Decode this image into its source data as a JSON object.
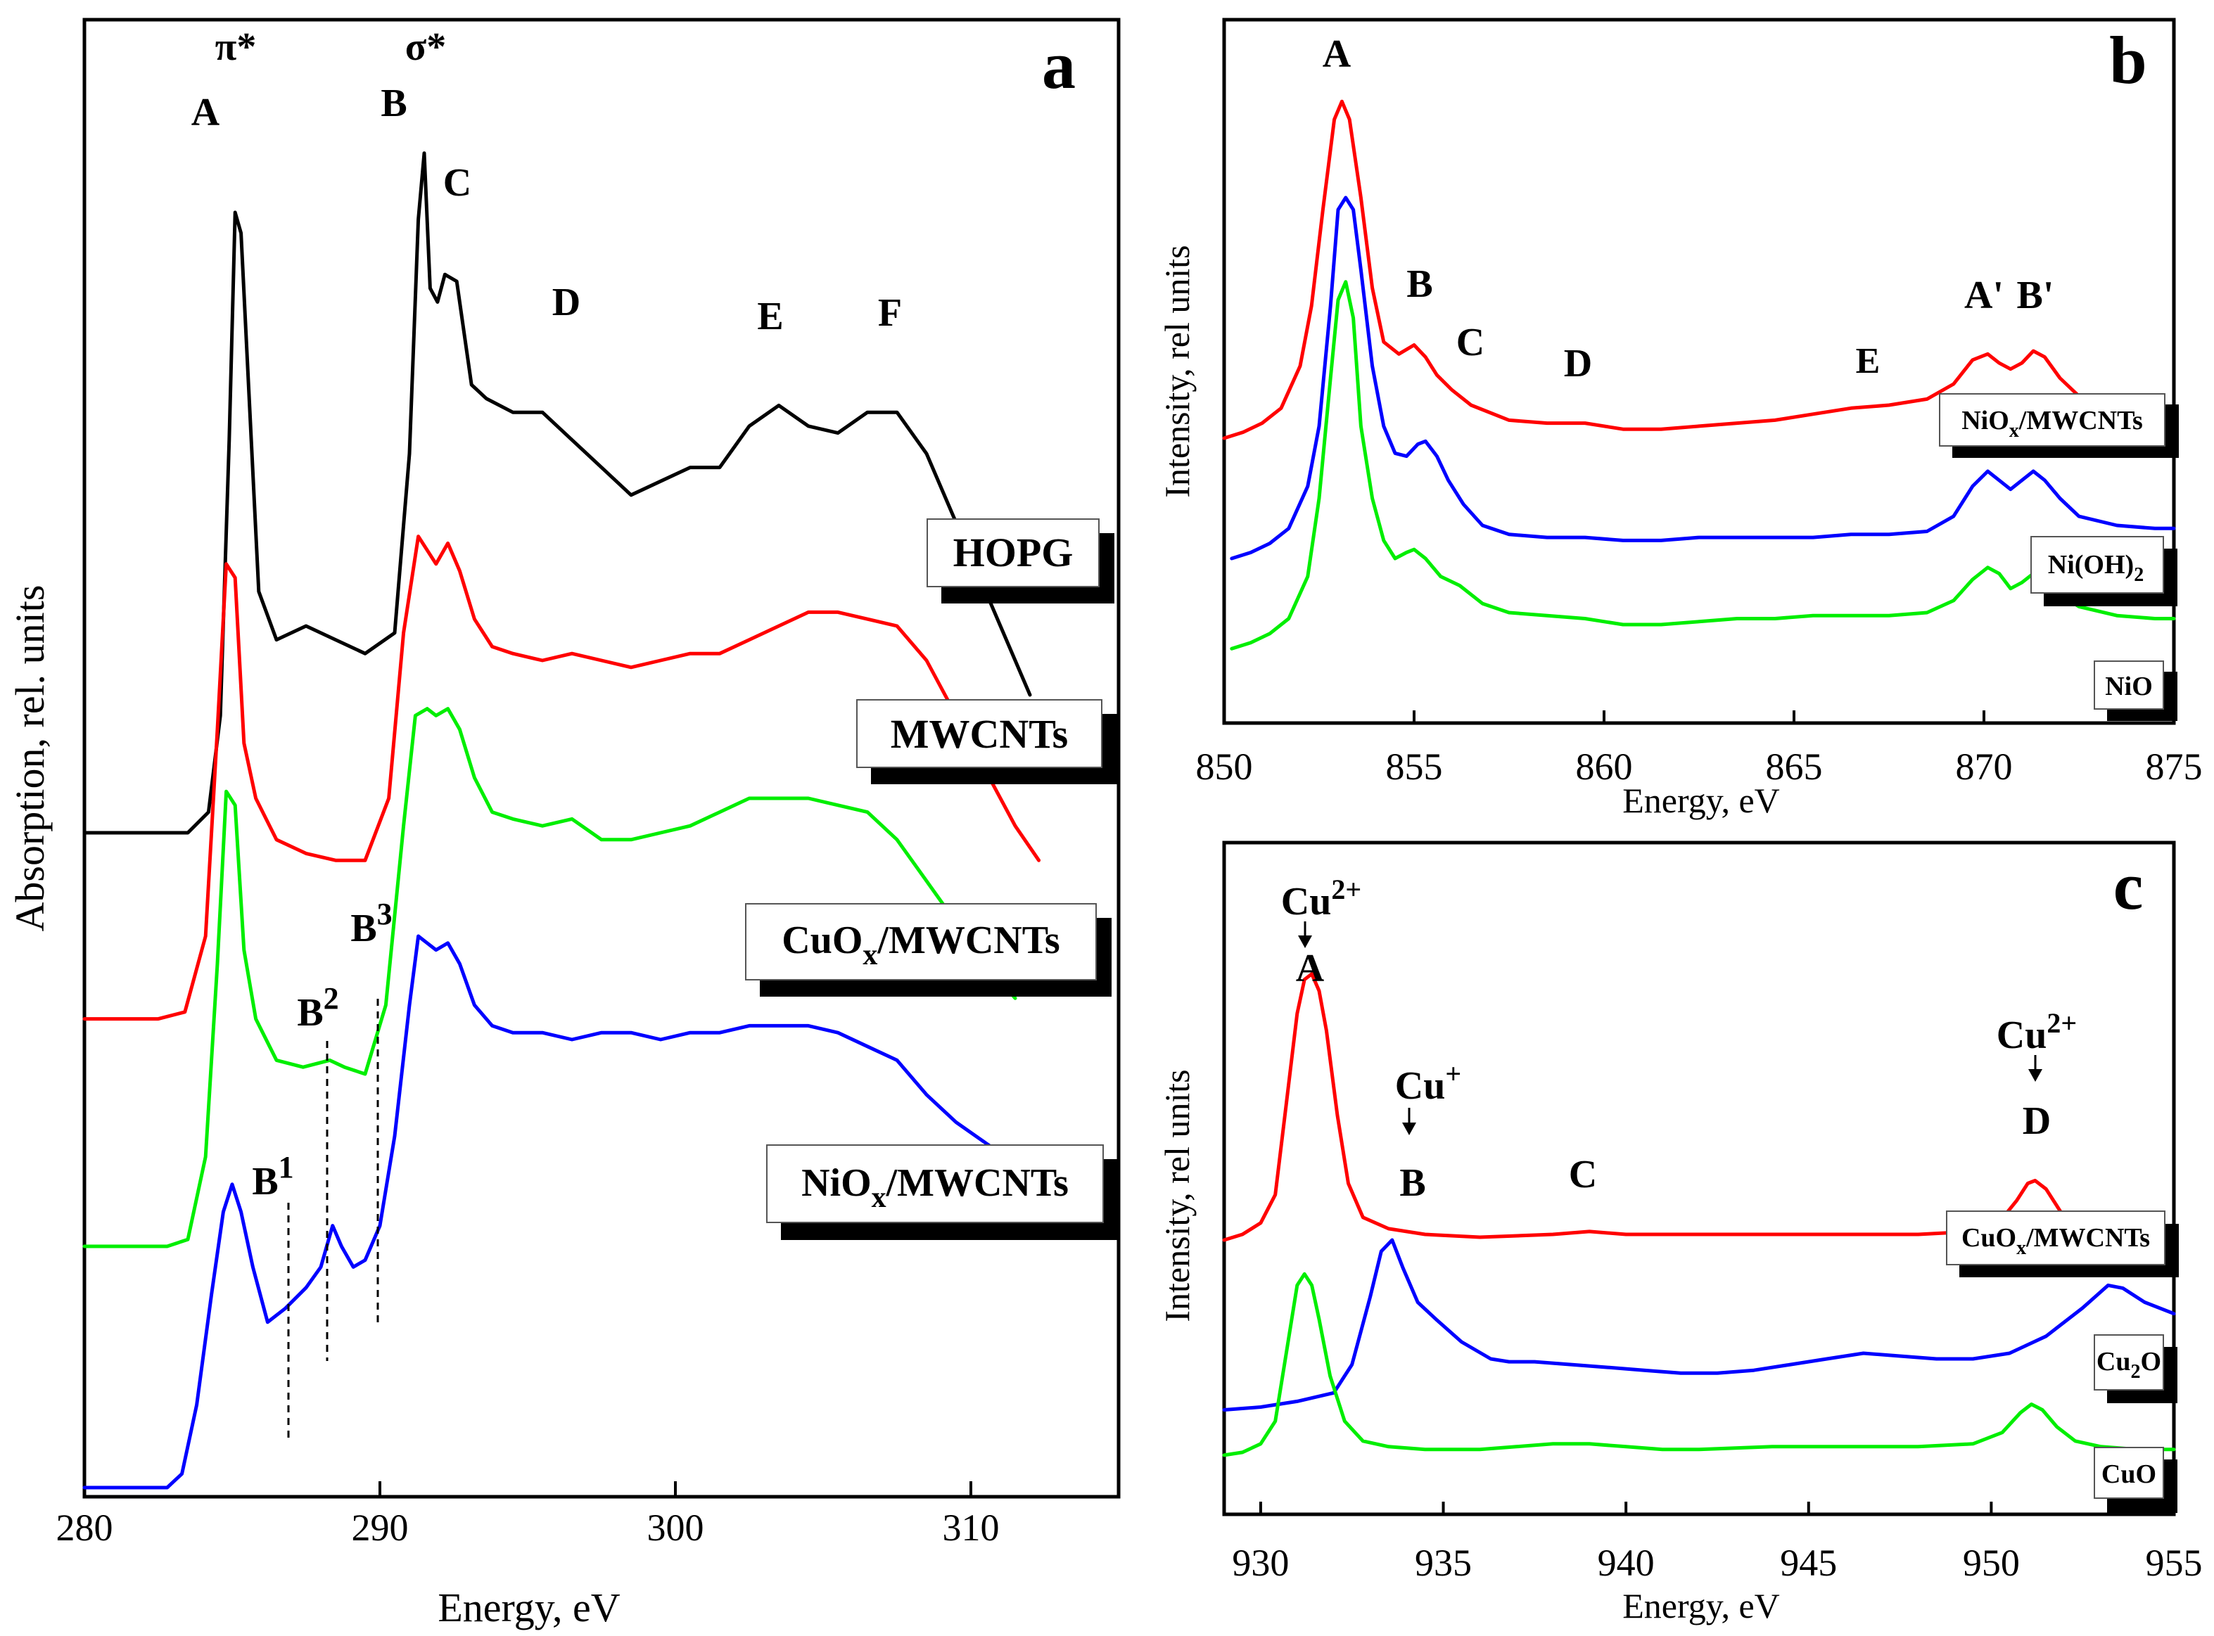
{
  "chart_data": [
    {
      "panel": "a",
      "type": "line",
      "xlabel": "Energy, eV",
      "ylabel": "Absorption, rel. units",
      "xlim": [
        280,
        315
      ],
      "xticks": [
        280,
        290,
        300,
        310
      ],
      "ylim": [
        0,
        1
      ],
      "series": [
        {
          "name": "HOPG",
          "color": "#000000",
          "x": [
            280,
            283.5,
            284.2,
            284.6,
            284.9,
            285.1,
            285.3,
            285.6,
            285.9,
            286.5,
            287.5,
            288.5,
            289.5,
            290.5,
            291.0,
            291.3,
            291.5,
            291.7,
            291.95,
            292.2,
            292.6,
            293.1,
            293.6,
            294.5,
            295.5,
            296.5,
            297.5,
            298.5,
            299.5,
            300.5,
            301.5,
            302.5,
            303.5,
            304.5,
            305.5,
            306.5,
            307.5,
            308.5,
            309.5,
            310.5,
            311.5,
            312.0
          ],
          "y": [
            0.475,
            0.475,
            0.49,
            0.56,
            0.76,
            0.925,
            0.91,
            0.78,
            0.65,
            0.615,
            0.625,
            0.615,
            0.605,
            0.62,
            0.75,
            0.92,
            0.968,
            0.87,
            0.86,
            0.88,
            0.875,
            0.8,
            0.79,
            0.78,
            0.78,
            0.76,
            0.74,
            0.72,
            0.73,
            0.74,
            0.74,
            0.77,
            0.785,
            0.77,
            0.765,
            0.78,
            0.78,
            0.75,
            0.7,
            0.65,
            0.6,
            0.575
          ]
        },
        {
          "name": "MWCNTs",
          "color": "#ff0000",
          "x": [
            280,
            282.5,
            283.4,
            284.1,
            284.5,
            284.8,
            285.1,
            285.4,
            285.8,
            286.5,
            287.5,
            288.5,
            289.5,
            290.3,
            290.8,
            291.3,
            291.6,
            291.9,
            292.3,
            292.7,
            293.2,
            293.8,
            294.5,
            295.5,
            296.5,
            297.5,
            298.5,
            299.5,
            300.5,
            301.5,
            302.5,
            303.5,
            304.5,
            305.5,
            306.5,
            307.5,
            308.5,
            309.5,
            310.5,
            311.5,
            312.3
          ],
          "y": [
            0.34,
            0.34,
            0.345,
            0.4,
            0.55,
            0.67,
            0.66,
            0.54,
            0.5,
            0.47,
            0.46,
            0.455,
            0.455,
            0.5,
            0.62,
            0.69,
            0.68,
            0.67,
            0.685,
            0.665,
            0.63,
            0.61,
            0.605,
            0.6,
            0.605,
            0.6,
            0.595,
            0.6,
            0.605,
            0.605,
            0.615,
            0.625,
            0.635,
            0.635,
            0.63,
            0.625,
            0.6,
            0.56,
            0.52,
            0.48,
            0.455
          ]
        },
        {
          "name": "CuOx/MWCNTs",
          "color": "#00ee00",
          "x": [
            280,
            282.8,
            283.5,
            284.1,
            284.5,
            284.8,
            285.1,
            285.4,
            285.8,
            286.5,
            287.4,
            288.3,
            288.8,
            289.5,
            290.2,
            290.8,
            291.2,
            291.6,
            291.9,
            292.3,
            292.7,
            293.2,
            293.8,
            294.5,
            295.5,
            296.5,
            297.5,
            298.5,
            299.5,
            300.5,
            301.5,
            302.5,
            303.5,
            304.5,
            305.5,
            306.5,
            307.5,
            308.5,
            309.5,
            310.5,
            311.5
          ],
          "y": [
            0.175,
            0.175,
            0.18,
            0.24,
            0.38,
            0.505,
            0.495,
            0.39,
            0.34,
            0.31,
            0.305,
            0.31,
            0.305,
            0.3,
            0.35,
            0.48,
            0.56,
            0.565,
            0.56,
            0.565,
            0.55,
            0.515,
            0.49,
            0.485,
            0.48,
            0.485,
            0.47,
            0.47,
            0.475,
            0.48,
            0.49,
            0.5,
            0.5,
            0.5,
            0.495,
            0.49,
            0.47,
            0.44,
            0.41,
            0.38,
            0.355
          ]
        },
        {
          "name": "NiOx/MWCNTs",
          "color": "#0000ff",
          "x": [
            280,
            282.8,
            283.3,
            283.8,
            284.3,
            284.7,
            285.0,
            285.3,
            285.7,
            286.2,
            286.8,
            287.5,
            288.0,
            288.4,
            288.7,
            289.1,
            289.5,
            290.0,
            290.5,
            291.0,
            291.3,
            291.6,
            291.9,
            292.3,
            292.7,
            293.2,
            293.8,
            294.5,
            295.5,
            296.5,
            297.5,
            298.5,
            299.5,
            300.5,
            301.5,
            302.5,
            303.5,
            304.5,
            305.5,
            306.5,
            307.5,
            308.5,
            309.5,
            310.5,
            311.5,
            312.2
          ],
          "y": [
            0.0,
            0.0,
            0.01,
            0.06,
            0.14,
            0.2,
            0.22,
            0.2,
            0.16,
            0.12,
            0.13,
            0.145,
            0.16,
            0.19,
            0.175,
            0.16,
            0.165,
            0.19,
            0.255,
            0.35,
            0.4,
            0.395,
            0.39,
            0.395,
            0.38,
            0.35,
            0.335,
            0.33,
            0.33,
            0.325,
            0.33,
            0.33,
            0.325,
            0.33,
            0.33,
            0.335,
            0.335,
            0.335,
            0.33,
            0.32,
            0.31,
            0.285,
            0.265,
            0.25,
            0.235,
            0.225
          ]
        }
      ],
      "peak_labels": [
        "A",
        "B",
        "C",
        "D",
        "E",
        "F"
      ],
      "orbital_labels": [
        "π*",
        "σ*"
      ],
      "feature_labels": [
        {
          "base": "B",
          "sup": "1"
        },
        {
          "base": "B",
          "sup": "2"
        },
        {
          "base": "B",
          "sup": "3"
        }
      ],
      "legend": [
        {
          "label": "HOPG"
        },
        {
          "label": "MWCNTs"
        },
        {
          "base": "CuO",
          "sub": "x",
          "rest": "/MWCNTs"
        },
        {
          "base": "NiO",
          "sub": "x",
          "rest": "/MWCNTs"
        }
      ]
    },
    {
      "panel": "b",
      "type": "line",
      "xlabel": "Energy, eV",
      "ylabel": "Intensity, rel units",
      "xlim": [
        850,
        875
      ],
      "xticks": [
        850,
        855,
        860,
        865,
        870,
        875
      ],
      "ylim": [
        0,
        1
      ],
      "series": [
        {
          "name": "NiOx/MWCNTs",
          "color": "#ff0000",
          "x": [
            850,
            850.5,
            851,
            851.5,
            852,
            852.3,
            852.6,
            852.9,
            853.1,
            853.3,
            853.6,
            853.9,
            854.2,
            854.6,
            855.0,
            855.3,
            855.6,
            856.0,
            856.5,
            857.5,
            858.5,
            859.5,
            860.5,
            861.5,
            862.5,
            863.5,
            864.5,
            865.5,
            866.5,
            867.5,
            868.5,
            869.2,
            869.7,
            870.1,
            870.4,
            870.7,
            871.0,
            871.3,
            871.6,
            872.0,
            872.5,
            873.5,
            874.5,
            875.0
          ],
          "y": [
            0.4,
            0.41,
            0.425,
            0.45,
            0.52,
            0.62,
            0.78,
            0.93,
            0.96,
            0.93,
            0.8,
            0.65,
            0.56,
            0.54,
            0.555,
            0.535,
            0.505,
            0.48,
            0.455,
            0.43,
            0.425,
            0.425,
            0.415,
            0.415,
            0.42,
            0.425,
            0.43,
            0.44,
            0.45,
            0.455,
            0.465,
            0.49,
            0.53,
            0.54,
            0.525,
            0.515,
            0.525,
            0.545,
            0.535,
            0.5,
            0.47,
            0.455,
            0.45,
            0.45
          ]
        },
        {
          "name": "Ni(OH)2",
          "color": "#0000ff",
          "x": [
            850.2,
            850.7,
            851.2,
            851.7,
            852.2,
            852.5,
            852.8,
            853.0,
            853.2,
            853.4,
            853.6,
            853.9,
            854.2,
            854.5,
            854.8,
            855.1,
            855.3,
            855.6,
            855.9,
            856.3,
            856.8,
            857.5,
            858.5,
            859.5,
            860.5,
            861.5,
            862.5,
            863.5,
            864.5,
            865.5,
            866.5,
            867.5,
            868.5,
            869.2,
            869.7,
            870.1,
            870.4,
            870.7,
            871.0,
            871.3,
            871.6,
            872.0,
            872.5,
            873.5,
            874.5,
            875.0
          ],
          "y": [
            0.2,
            0.21,
            0.225,
            0.25,
            0.32,
            0.42,
            0.62,
            0.78,
            0.8,
            0.78,
            0.68,
            0.52,
            0.42,
            0.375,
            0.37,
            0.39,
            0.395,
            0.37,
            0.33,
            0.29,
            0.255,
            0.24,
            0.235,
            0.235,
            0.23,
            0.23,
            0.235,
            0.235,
            0.235,
            0.235,
            0.24,
            0.24,
            0.245,
            0.27,
            0.32,
            0.345,
            0.33,
            0.315,
            0.33,
            0.345,
            0.33,
            0.3,
            0.27,
            0.255,
            0.25,
            0.25
          ]
        },
        {
          "name": "NiO",
          "color": "#00ee00",
          "x": [
            850.2,
            850.7,
            851.2,
            851.7,
            852.2,
            852.5,
            852.8,
            853.0,
            853.2,
            853.4,
            853.6,
            853.9,
            854.2,
            854.5,
            854.8,
            855.0,
            855.3,
            855.7,
            856.2,
            856.8,
            857.5,
            858.5,
            859.5,
            860.5,
            861.5,
            862.5,
            863.5,
            864.5,
            865.5,
            866.5,
            867.5,
            868.5,
            869.2,
            869.7,
            870.1,
            870.4,
            870.7,
            871.0,
            871.3,
            871.6,
            872.0,
            872.5,
            873.5,
            874.5,
            875.0
          ],
          "y": [
            0.05,
            0.06,
            0.075,
            0.1,
            0.17,
            0.3,
            0.5,
            0.63,
            0.66,
            0.6,
            0.42,
            0.3,
            0.23,
            0.2,
            0.21,
            0.215,
            0.2,
            0.17,
            0.155,
            0.125,
            0.11,
            0.105,
            0.1,
            0.09,
            0.09,
            0.095,
            0.1,
            0.1,
            0.105,
            0.105,
            0.105,
            0.11,
            0.13,
            0.165,
            0.185,
            0.175,
            0.15,
            0.16,
            0.175,
            0.165,
            0.14,
            0.12,
            0.105,
            0.1,
            0.1
          ]
        }
      ],
      "peak_labels": [
        "A",
        "B",
        "C",
        "D",
        "E",
        "A'",
        "B'"
      ],
      "legend": [
        {
          "base": "NiO",
          "sub": "x",
          "rest": "/MWCNTs"
        },
        {
          "base": "Ni(OH)",
          "sub": "2",
          "rest": ""
        },
        {
          "label": "NiO"
        }
      ]
    },
    {
      "panel": "c",
      "type": "line",
      "xlabel": "Energy, eV",
      "ylabel": "Intensity, rel units",
      "xlim": [
        929,
        955
      ],
      "xticks": [
        930,
        935,
        940,
        945,
        950,
        955
      ],
      "ylim": [
        0,
        1
      ],
      "series": [
        {
          "name": "CuOx/MWCNTs",
          "color": "#ff0000",
          "x": [
            929,
            929.5,
            930.0,
            930.4,
            930.7,
            931.0,
            931.2,
            931.4,
            931.6,
            931.8,
            932.1,
            932.4,
            932.8,
            933.5,
            934.5,
            936,
            938,
            939,
            940,
            942,
            944,
            946,
            948,
            949.5,
            950.2,
            950.7,
            951.0,
            951.2,
            951.5,
            951.9,
            952.4,
            953.2,
            954,
            955
          ],
          "y": [
            0.4,
            0.41,
            0.43,
            0.48,
            0.64,
            0.8,
            0.86,
            0.87,
            0.84,
            0.77,
            0.62,
            0.5,
            0.44,
            0.42,
            0.41,
            0.405,
            0.41,
            0.415,
            0.41,
            0.41,
            0.41,
            0.41,
            0.41,
            0.415,
            0.43,
            0.47,
            0.5,
            0.505,
            0.49,
            0.45,
            0.42,
            0.41,
            0.41,
            0.41
          ]
        },
        {
          "name": "Cu2O",
          "color": "#0000ff",
          "x": [
            929,
            930,
            931,
            932,
            932.5,
            933.0,
            933.3,
            933.6,
            933.9,
            934.3,
            934.8,
            935.5,
            936.3,
            936.8,
            937.5,
            938.5,
            939.5,
            940.5,
            941.5,
            942.5,
            943.5,
            944.5,
            945.5,
            946.5,
            947.5,
            948.5,
            949.5,
            950.5,
            951.5,
            952.5,
            953.2,
            953.6,
            954.2,
            955
          ],
          "y": [
            0.1,
            0.105,
            0.115,
            0.13,
            0.18,
            0.3,
            0.38,
            0.4,
            0.35,
            0.29,
            0.26,
            0.22,
            0.19,
            0.185,
            0.185,
            0.18,
            0.175,
            0.17,
            0.165,
            0.165,
            0.17,
            0.18,
            0.19,
            0.2,
            0.195,
            0.19,
            0.19,
            0.2,
            0.23,
            0.28,
            0.32,
            0.315,
            0.29,
            0.27
          ]
        },
        {
          "name": "CuO",
          "color": "#00ee00",
          "x": [
            929,
            929.5,
            930.0,
            930.4,
            930.7,
            931.0,
            931.2,
            931.4,
            931.6,
            931.9,
            932.3,
            932.8,
            933.5,
            934.5,
            936,
            937,
            938,
            939,
            940,
            941,
            942,
            944,
            946,
            948,
            949.5,
            950.3,
            950.8,
            951.1,
            951.4,
            951.8,
            952.3,
            953,
            954,
            955
          ],
          "y": [
            0.02,
            0.025,
            0.04,
            0.08,
            0.2,
            0.32,
            0.34,
            0.32,
            0.26,
            0.16,
            0.08,
            0.045,
            0.035,
            0.03,
            0.03,
            0.035,
            0.04,
            0.04,
            0.035,
            0.03,
            0.03,
            0.035,
            0.035,
            0.035,
            0.04,
            0.06,
            0.095,
            0.11,
            0.1,
            0.07,
            0.045,
            0.035,
            0.03,
            0.03
          ]
        }
      ],
      "peak_labels": [
        "A",
        "B",
        "C",
        "D"
      ],
      "ion_labels": [
        {
          "base": "Cu",
          "sup": "2+"
        },
        {
          "base": "Cu",
          "sup": "+"
        },
        {
          "base": "Cu",
          "sup": "2+"
        }
      ],
      "legend": [
        {
          "base": "CuO",
          "sub": "x",
          "rest": "/MWCNTs"
        },
        {
          "base": "Cu",
          "sub": "2",
          "rest": "O"
        },
        {
          "label": "CuO"
        }
      ]
    }
  ]
}
